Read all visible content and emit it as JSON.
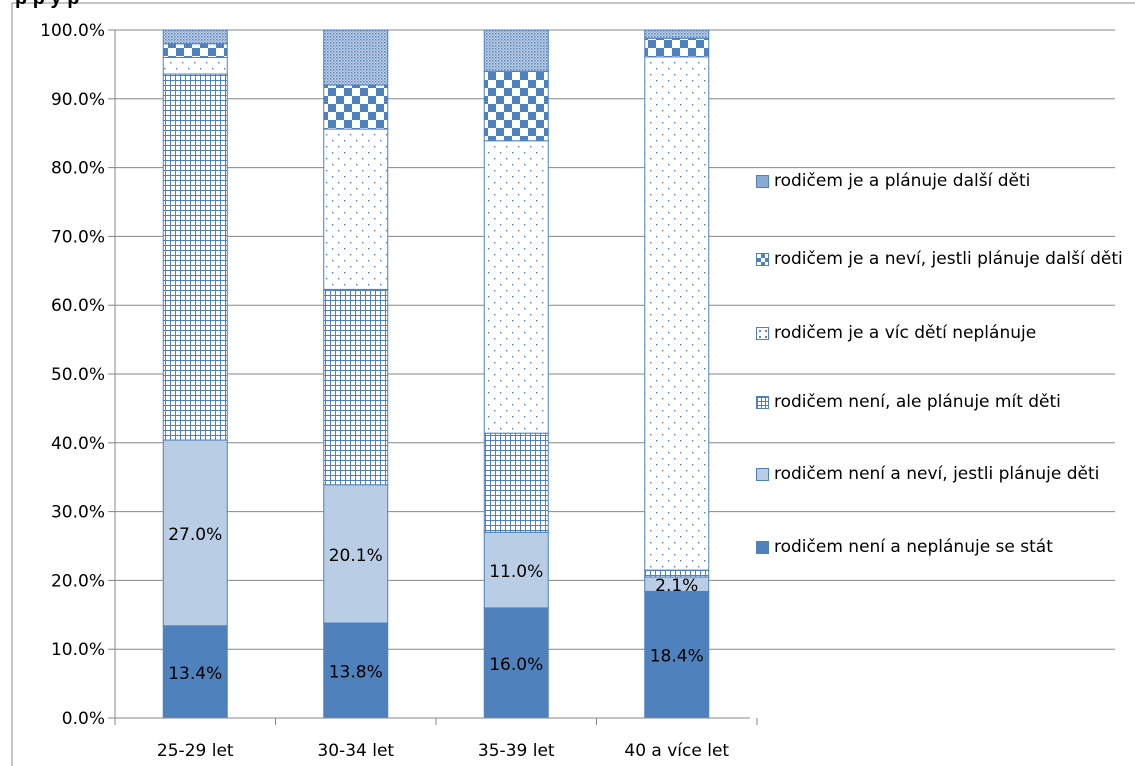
{
  "chart_data": {
    "type": "bar",
    "stacked": true,
    "title": "p      p  y    p",
    "categories": [
      "25-29 let",
      "30-34 let",
      "35-39 let",
      "40 a více let"
    ],
    "y_tick_labels": [
      "0.0%",
      "10.0%",
      "20.0%",
      "30.0%",
      "40.0%",
      "50.0%",
      "60.0%",
      "70.0%",
      "80.0%",
      "90.0%",
      "100.0%"
    ],
    "ylim": [
      0,
      100
    ],
    "grid": true,
    "legend_position": "right",
    "series": [
      {
        "name": "rodičem není a neplánuje se stát",
        "pattern": "solid-dark",
        "color": "#4f81bd",
        "values": [
          13.4,
          13.8,
          16.0,
          18.4
        ],
        "labels": [
          "13.4%",
          "13.8%",
          "16.0%",
          "18.4%"
        ]
      },
      {
        "name": "rodičem není a neví, jestli plánuje děti",
        "pattern": "solid-light",
        "color": "#b9cde5",
        "values": [
          27.0,
          20.1,
          11.0,
          2.1
        ],
        "labels": [
          "27.0%",
          "20.1%",
          "11.0%",
          "2.1%"
        ]
      },
      {
        "name": "rodičem není, ale plánuje mít děti",
        "pattern": "grid",
        "color": "#4f81bd",
        "values": [
          53.2,
          28.4,
          14.4,
          1.0
        ],
        "labels": [
          "",
          "",
          "",
          ""
        ]
      },
      {
        "name": "rodičem je a víc dětí neplánuje",
        "pattern": "dots",
        "color": "#4f81bd",
        "values": [
          2.4,
          23.3,
          42.5,
          74.6
        ],
        "labels": [
          "",
          "",
          "",
          ""
        ]
      },
      {
        "name": "rodičem je a neví, jestli plánuje další děti",
        "pattern": "checker",
        "color": "#4f81bd",
        "values": [
          2.0,
          6.4,
          10.1,
          2.7
        ],
        "labels": [
          "",
          "",
          "",
          ""
        ]
      },
      {
        "name": "rodičem je a plánuje další děti",
        "pattern": "fine-dots",
        "color": "#4f81bd",
        "values": [
          2.0,
          8.0,
          6.0,
          1.2
        ],
        "labels": [
          "",
          "",
          "",
          ""
        ]
      }
    ],
    "legend": [
      {
        "label": "rodičem je a plánuje další děti",
        "pattern": "fine-dots"
      },
      {
        "label": "rodičem je a neví, jestli plánuje další děti",
        "pattern": "checker"
      },
      {
        "label": "rodičem je a víc dětí neplánuje",
        "pattern": "dots"
      },
      {
        "label": "rodičem není, ale plánuje mít děti",
        "pattern": "grid"
      },
      {
        "label": "rodičem není a neví, jestli plánuje děti",
        "pattern": "solid-light"
      },
      {
        "label": "rodičem není a neplánuje se stát",
        "pattern": "solid-dark"
      }
    ]
  }
}
